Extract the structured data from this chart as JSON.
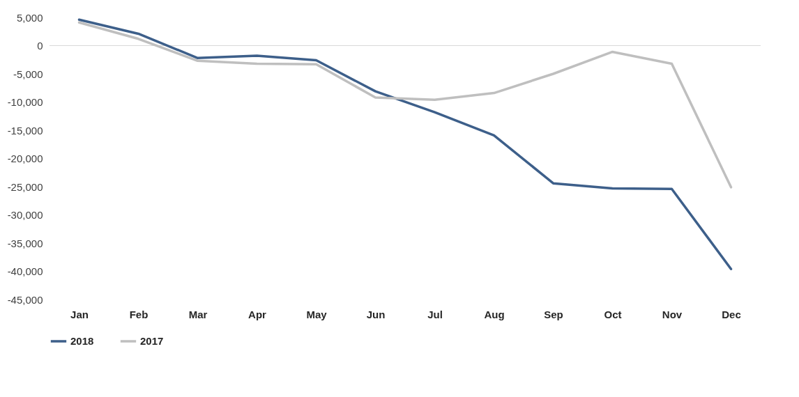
{
  "chart_data": {
    "type": "line",
    "categories": [
      "Jan",
      "Feb",
      "Mar",
      "Apr",
      "May",
      "Jun",
      "Jul",
      "Aug",
      "Sep",
      "Oct",
      "Nov",
      "Dec"
    ],
    "series": [
      {
        "name": "2018",
        "color": "#3d5f8a",
        "values": [
          4600,
          2100,
          -2200,
          -1800,
          -2600,
          -8100,
          -11800,
          -15900,
          -24400,
          -25300,
          -25400,
          -39600
        ]
      },
      {
        "name": "2017",
        "color": "#bfbfbf",
        "values": [
          4100,
          1200,
          -2700,
          -3200,
          -3300,
          -9200,
          -9600,
          -8400,
          -5000,
          -1100,
          -3200,
          -25100
        ]
      }
    ],
    "ylim": [
      -45000,
      5000
    ],
    "yticks": [
      {
        "value": -45000,
        "label": "-45,000"
      },
      {
        "value": -40000,
        "label": "-40,000"
      },
      {
        "value": -35000,
        "label": "-35,000"
      },
      {
        "value": -30000,
        "label": "-30,000"
      },
      {
        "value": -25000,
        "label": "-25,000"
      },
      {
        "value": -20000,
        "label": "-20,000"
      },
      {
        "value": -15000,
        "label": "-15,000"
      },
      {
        "value": -10000,
        "label": "-10,000"
      },
      {
        "value": -5000,
        "label": "-5,000"
      },
      0,
      {
        "value": 5000,
        "label": "5,000"
      }
    ],
    "ref_lines": [
      {
        "axis": "y",
        "value": 0,
        "color": "#d9d9d9"
      }
    ],
    "grid": false,
    "legend": "bottom",
    "marker": "none",
    "line_style": "solid"
  }
}
